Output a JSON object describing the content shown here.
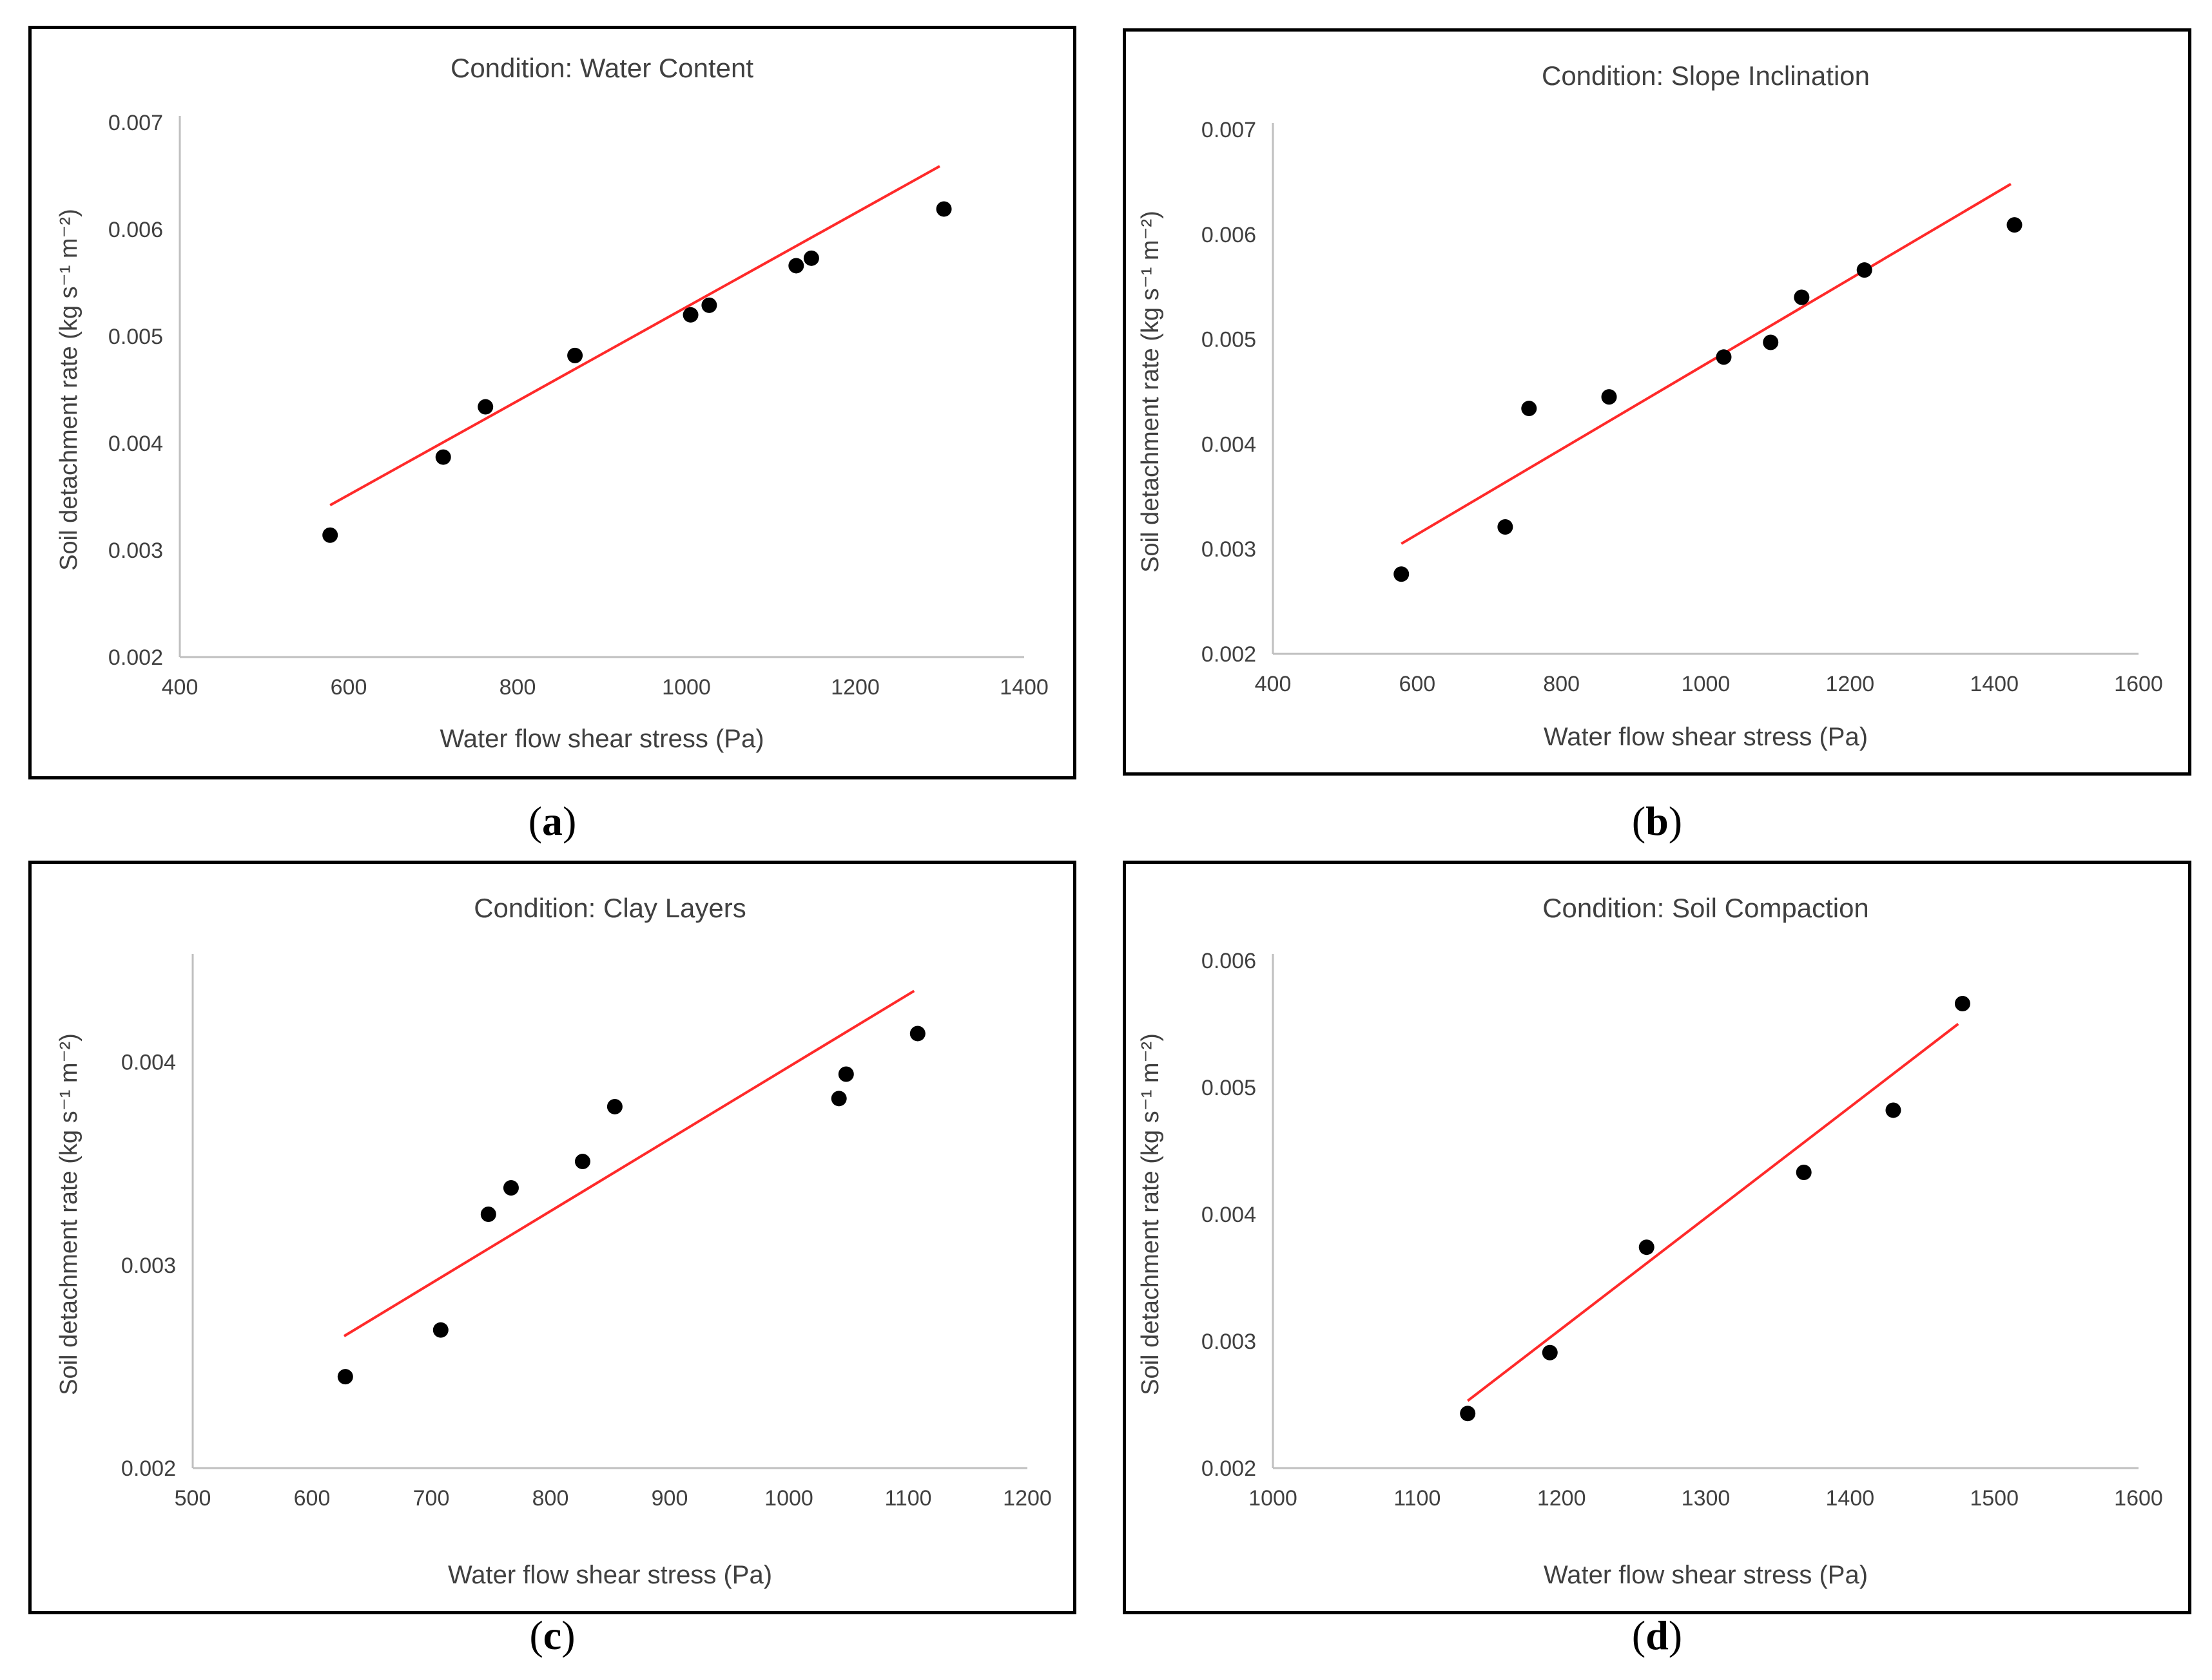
{
  "chart_data": [
    {
      "id": "a",
      "type": "scatter",
      "title": "Condition: Water Content",
      "xlabel": "Water flow shear stress (Pa)",
      "ylabel": "Soil detachment rate (kg s⁻¹ m⁻²)",
      "xlim": [
        400,
        1400
      ],
      "ylim": [
        0.002,
        0.007
      ],
      "xticks": [
        "400",
        "600",
        "800",
        "1000",
        "1200",
        "1400"
      ],
      "yticks": [
        "0.002",
        "0.003",
        "0.004",
        "0.005",
        "0.006",
        "0.007"
      ],
      "points": [
        [
          578,
          0.00314
        ],
        [
          712,
          0.00387
        ],
        [
          762,
          0.00434
        ],
        [
          868,
          0.00482
        ],
        [
          1005,
          0.0052
        ],
        [
          1027,
          0.00529
        ],
        [
          1130,
          0.00566
        ],
        [
          1148,
          0.00573
        ],
        [
          1305,
          0.00619
        ]
      ],
      "trendline": [
        [
          578,
          0.00342
        ],
        [
          1300,
          0.00659
        ]
      ],
      "caption_letter": "a"
    },
    {
      "id": "b",
      "type": "scatter",
      "title": "Condition: Slope Inclination",
      "xlabel": "Water flow shear stress (Pa)",
      "ylabel": "Soil detachment rate (kg s⁻¹ m⁻²)",
      "xlim": [
        400,
        1600
      ],
      "ylim": [
        0.002,
        0.007
      ],
      "xticks": [
        "400",
        "600",
        "800",
        "1000",
        "1200",
        "1400",
        "1600"
      ],
      "yticks": [
        "0.002",
        "0.003",
        "0.004",
        "0.005",
        "0.006",
        "0.007"
      ],
      "points": [
        [
          578,
          0.00276
        ],
        [
          722,
          0.00321
        ],
        [
          755,
          0.00434
        ],
        [
          866,
          0.00445
        ],
        [
          1025,
          0.00483
        ],
        [
          1090,
          0.00497
        ],
        [
          1133,
          0.0054
        ],
        [
          1220,
          0.00566
        ],
        [
          1428,
          0.00609
        ]
      ],
      "trendline": [
        [
          578,
          0.00305
        ],
        [
          1423,
          0.00648
        ]
      ],
      "caption_letter": "b"
    },
    {
      "id": "c",
      "type": "scatter",
      "title": "Condition: Clay Layers",
      "xlabel": "Water flow shear stress (Pa)",
      "ylabel": "Soil detachment rate (kg s⁻¹ m⁻²)",
      "xlim": [
        500,
        1200
      ],
      "ylim": [
        0.002,
        0.0045
      ],
      "xticks": [
        "500",
        "600",
        "700",
        "800",
        "900",
        "1000",
        "1100",
        "1200"
      ],
      "yticks": [
        "0.002",
        "0.003",
        "0.004"
      ],
      "ytick_values": [
        0.002,
        0.003,
        0.004
      ],
      "points": [
        [
          628,
          0.00245
        ],
        [
          708,
          0.00268
        ],
        [
          748,
          0.00325
        ],
        [
          767,
          0.00338
        ],
        [
          827,
          0.00351
        ],
        [
          854,
          0.00378
        ],
        [
          1042,
          0.00382
        ],
        [
          1048,
          0.00394
        ],
        [
          1108,
          0.00414
        ]
      ],
      "trendline": [
        [
          627,
          0.00265
        ],
        [
          1105,
          0.00435
        ]
      ],
      "caption_letter": "c"
    },
    {
      "id": "d",
      "type": "scatter",
      "title": "Condition: Soil Compaction",
      "xlabel": "Water flow shear stress (Pa)",
      "ylabel": "Soil detachment rate (kg s⁻¹ m⁻²)",
      "xlim": [
        1000,
        1600
      ],
      "ylim": [
        0.002,
        0.006
      ],
      "xticks": [
        "1000",
        "1100",
        "1200",
        "1300",
        "1400",
        "1500",
        "1600"
      ],
      "yticks": [
        "0.002",
        "0.003",
        "0.004",
        "0.005",
        "0.006"
      ],
      "points": [
        [
          1135,
          0.00243
        ],
        [
          1192,
          0.00291
        ],
        [
          1259,
          0.00374
        ],
        [
          1368,
          0.00433
        ],
        [
          1430,
          0.00482
        ],
        [
          1478,
          0.00566
        ]
      ],
      "trendline": [
        [
          1135,
          0.00253
        ],
        [
          1475,
          0.0055
        ]
      ],
      "caption_letter": "d"
    }
  ]
}
